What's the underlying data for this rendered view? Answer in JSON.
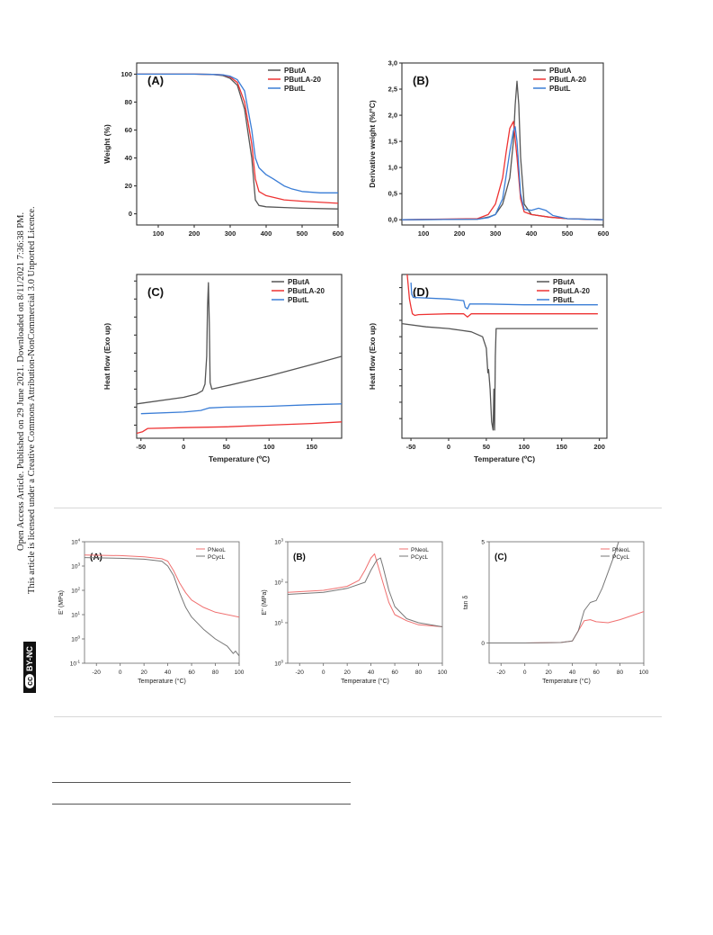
{
  "sidebar": {
    "line1": "Open Access Article. Published on 29 June 2021. Downloaded on 8/11/2021 7:36:38 PM.",
    "line2": "This article is licensed under a Creative Commons Attribution-NonCommercial 3.0 Unported Licence.",
    "badge_cc": "cc",
    "badge_text": "BY-NC"
  },
  "colors": {
    "series1": "#555555",
    "series2": "#ee3333",
    "series3": "#3a7dd6",
    "pink": "#f07070",
    "gray": "#777777"
  },
  "chart_data": [
    {
      "id": "A1",
      "type": "line",
      "panel_label": "(A)",
      "xlabel": "",
      "ylabel": "Weight (%)",
      "xlim": [
        40,
        600
      ],
      "ylim": [
        -8,
        108
      ],
      "xticks": [
        100,
        200,
        300,
        400,
        500,
        600
      ],
      "yticks": [
        0,
        20,
        40,
        60,
        80,
        100
      ],
      "ytick_labels": [
        "0",
        "20",
        "40",
        "60",
        "80",
        "100"
      ],
      "legend": "top-right",
      "series": [
        {
          "name": "PButA",
          "color": "#555555",
          "x": [
            40,
            200,
            250,
            280,
            300,
            320,
            340,
            360,
            370,
            380,
            400,
            450,
            500,
            600
          ],
          "y": [
            100,
            100,
            99.8,
            99,
            97,
            92,
            75,
            40,
            10,
            6,
            5,
            4.5,
            4,
            3.5
          ]
        },
        {
          "name": "PButLA-20",
          "color": "#ee3333",
          "x": [
            40,
            200,
            250,
            280,
            300,
            320,
            340,
            360,
            370,
            380,
            400,
            450,
            500,
            600
          ],
          "y": [
            100,
            100,
            99.8,
            99.5,
            98,
            94,
            80,
            50,
            25,
            16,
            13,
            10,
            9,
            7.5
          ]
        },
        {
          "name": "PButL",
          "color": "#3a7dd6",
          "x": [
            40,
            200,
            250,
            280,
            300,
            320,
            340,
            360,
            370,
            380,
            400,
            420,
            450,
            470,
            500,
            550,
            600
          ],
          "y": [
            100,
            100,
            99.8,
            99.5,
            98.5,
            96,
            88,
            60,
            40,
            33,
            28,
            25,
            20,
            18,
            16,
            15,
            15
          ]
        }
      ]
    },
    {
      "id": "B1",
      "type": "line",
      "panel_label": "(B)",
      "xlabel": "",
      "ylabel": "Derivative weight (%/°C)",
      "xlim": [
        40,
        600
      ],
      "ylim": [
        -0.1,
        3.0
      ],
      "xticks": [
        100,
        200,
        300,
        400,
        500,
        600
      ],
      "yticks": [
        0,
        0.5,
        1.0,
        1.5,
        2.0,
        2.5,
        3.0
      ],
      "ytick_labels": [
        "0,0",
        "0,5",
        "1,0",
        "1,5",
        "2,0",
        "2,5",
        "3,0"
      ],
      "legend": "top-right",
      "series": [
        {
          "name": "PButA",
          "color": "#555555",
          "x": [
            40,
            250,
            280,
            300,
            320,
            340,
            350,
            355,
            360,
            365,
            370,
            380,
            400,
            450,
            500,
            600
          ],
          "y": [
            0,
            0.01,
            0.05,
            0.1,
            0.3,
            0.8,
            1.5,
            2.2,
            2.65,
            2.2,
            1.2,
            0.3,
            0.1,
            0.05,
            0.02,
            0
          ]
        },
        {
          "name": "PButLA-20",
          "color": "#ee3333",
          "x": [
            40,
            250,
            280,
            300,
            320,
            330,
            340,
            350,
            360,
            370,
            380,
            400,
            450,
            500,
            600
          ],
          "y": [
            0,
            0.02,
            0.1,
            0.3,
            0.8,
            1.3,
            1.75,
            1.88,
            1.2,
            0.4,
            0.15,
            0.1,
            0.05,
            0.02,
            0
          ]
        },
        {
          "name": "PButL",
          "color": "#3a7dd6",
          "x": [
            40,
            250,
            280,
            300,
            320,
            340,
            350,
            355,
            360,
            370,
            380,
            400,
            420,
            440,
            460,
            500,
            600
          ],
          "y": [
            0,
            0.01,
            0.04,
            0.1,
            0.4,
            1.3,
            1.7,
            1.78,
            1.5,
            0.5,
            0.2,
            0.18,
            0.22,
            0.18,
            0.08,
            0.02,
            0
          ]
        }
      ]
    },
    {
      "id": "C1",
      "type": "line",
      "panel_label": "(C)",
      "xlabel": "Temperature (ºC)",
      "ylabel": "Heat flow (Exo up)",
      "xlim": [
        -55,
        185
      ],
      "ylim": [
        0,
        100
      ],
      "xticks": [
        -50,
        0,
        50,
        100,
        150
      ],
      "yticks": [
        8,
        19,
        30,
        41,
        52,
        63,
        74,
        85,
        96
      ],
      "ytick_labels": [],
      "legend": "top-right",
      "series": [
        {
          "name": "PButA",
          "color": "#555555",
          "x": [
            -55,
            0,
            15,
            22,
            25,
            27,
            28,
            29,
            30,
            31,
            33,
            50,
            100,
            150,
            185
          ],
          "y": [
            21,
            25,
            27,
            29,
            33,
            50,
            80,
            95,
            70,
            34,
            30,
            32,
            38,
            45,
            50
          ]
        },
        {
          "name": "PButLA-20",
          "color": "#ee3333",
          "x": [
            -55,
            -48,
            -42,
            0,
            50,
            100,
            150,
            185
          ],
          "y": [
            3,
            4,
            6,
            6.5,
            7,
            8,
            9,
            10
          ]
        },
        {
          "name": "PButL",
          "color": "#3a7dd6",
          "x": [
            -50,
            0,
            20,
            30,
            50,
            100,
            150,
            185
          ],
          "y": [
            15,
            16,
            17,
            18.5,
            19,
            19.5,
            20.5,
            21
          ]
        }
      ]
    },
    {
      "id": "D1",
      "type": "line",
      "panel_label": "(D)",
      "xlabel": "Temperature (ºC)",
      "ylabel": "Heat flow (Exo up)",
      "xlim": [
        -62,
        210
      ],
      "ylim": [
        0,
        100
      ],
      "xticks": [
        -50,
        0,
        50,
        100,
        150,
        200
      ],
      "yticks": [
        12,
        22,
        32,
        42,
        52,
        62,
        72,
        82,
        92
      ],
      "ytick_labels": [],
      "legend": "top-right",
      "series": [
        {
          "name": "PButA",
          "color": "#555555",
          "x": [
            -62,
            -30,
            0,
            30,
            45,
            50,
            52,
            53,
            55,
            57,
            59,
            60,
            61,
            62,
            63,
            70,
            100,
            150,
            198
          ],
          "y": [
            70,
            68,
            67,
            65,
            62,
            55,
            40,
            42,
            30,
            10,
            5,
            30,
            5,
            50,
            67,
            67,
            67,
            67,
            67
          ]
        },
        {
          "name": "PButLA-20",
          "color": "#ee3333",
          "x": [
            -55,
            -52,
            -50,
            -48,
            -45,
            -40,
            0,
            20,
            25,
            30,
            50,
            100,
            150,
            198
          ],
          "y": [
            100,
            85,
            80,
            76,
            75,
            75.5,
            76,
            76,
            74,
            76,
            76,
            76,
            76,
            76
          ]
        },
        {
          "name": "PButL",
          "color": "#3a7dd6",
          "x": [
            -50,
            -49,
            -47,
            0,
            20,
            22,
            25,
            28,
            30,
            50,
            100,
            150,
            198
          ],
          "y": [
            95,
            88,
            86,
            85,
            84,
            80,
            79,
            82,
            82,
            82,
            81.5,
            81.5,
            81.5
          ]
        }
      ]
    },
    {
      "id": "A2",
      "type": "line",
      "panel_label": "(A)",
      "xlabel": "Temperature (°C)",
      "ylabel": "E' (MPa)",
      "xlim": [
        -30,
        100
      ],
      "ylim": [
        -1,
        4
      ],
      "log_y": true,
      "xticks": [
        -20,
        0,
        20,
        40,
        60,
        80,
        100
      ],
      "yticks": [
        -1,
        0,
        1,
        2,
        3,
        4
      ],
      "ytick_labels": [
        "10-1",
        "100",
        "101",
        "102",
        "103",
        "104"
      ],
      "legend": "top-right",
      "series": [
        {
          "name": "PNeoL",
          "color": "#f07070",
          "x": [
            -30,
            0,
            20,
            35,
            40,
            45,
            50,
            55,
            60,
            70,
            80,
            100
          ],
          "y": [
            3.45,
            3.43,
            3.38,
            3.3,
            3.2,
            2.8,
            2.3,
            1.9,
            1.6,
            1.3,
            1.1,
            0.9
          ]
        },
        {
          "name": "PCycL",
          "color": "#777777",
          "x": [
            -30,
            0,
            20,
            35,
            40,
            45,
            50,
            55,
            60,
            70,
            80,
            90,
            95,
            97,
            100
          ],
          "y": [
            3.35,
            3.32,
            3.28,
            3.2,
            3.0,
            2.6,
            1.9,
            1.3,
            0.9,
            0.4,
            0.0,
            -0.3,
            -0.6,
            -0.5,
            -0.7
          ]
        }
      ]
    },
    {
      "id": "B2",
      "type": "line",
      "panel_label": "(B)",
      "xlabel": "Temperature (°C)",
      "ylabel": "E'' (MPa)",
      "xlim": [
        -30,
        100
      ],
      "ylim": [
        0,
        3
      ],
      "log_y": true,
      "xticks": [
        -20,
        0,
        20,
        40,
        60,
        80,
        100
      ],
      "yticks": [
        0,
        1,
        2,
        3
      ],
      "ytick_labels": [
        "100",
        "101",
        "102",
        "103"
      ],
      "legend": "top-right",
      "series": [
        {
          "name": "PNeoL",
          "color": "#f07070",
          "x": [
            -30,
            0,
            20,
            30,
            35,
            40,
            43,
            45,
            50,
            55,
            60,
            70,
            80,
            100
          ],
          "y": [
            1.75,
            1.8,
            1.9,
            2.05,
            2.3,
            2.6,
            2.7,
            2.5,
            2.0,
            1.5,
            1.2,
            1.05,
            0.95,
            0.9
          ]
        },
        {
          "name": "PCycL",
          "color": "#777777",
          "x": [
            -30,
            0,
            20,
            35,
            40,
            45,
            48,
            50,
            55,
            60,
            70,
            80,
            100
          ],
          "y": [
            1.7,
            1.75,
            1.85,
            2.0,
            2.3,
            2.55,
            2.6,
            2.4,
            1.8,
            1.4,
            1.1,
            1.0,
            0.9
          ]
        }
      ]
    },
    {
      "id": "C2",
      "type": "line",
      "panel_label": "(C)",
      "xlabel": "Temperature (°C)",
      "ylabel": "tan δ",
      "xlim": [
        -30,
        100
      ],
      "ylim": [
        -1,
        5
      ],
      "xticks": [
        -20,
        0,
        20,
        40,
        60,
        80,
        100
      ],
      "yticks": [
        0,
        5
      ],
      "ytick_labels": [
        "0",
        "5"
      ],
      "legend": "top-right",
      "series": [
        {
          "name": "PNeoL",
          "color": "#f07070",
          "x": [
            -30,
            0,
            30,
            40,
            45,
            50,
            55,
            60,
            70,
            80,
            90,
            100
          ],
          "y": [
            0,
            0,
            0.02,
            0.1,
            0.6,
            1.1,
            1.15,
            1.05,
            1.0,
            1.15,
            1.35,
            1.55
          ]
        },
        {
          "name": "PCycL",
          "color": "#777777",
          "x": [
            -30,
            0,
            30,
            40,
            45,
            50,
            55,
            60,
            65,
            70,
            75,
            80
          ],
          "y": [
            0,
            0,
            0.02,
            0.1,
            0.6,
            1.6,
            2.0,
            2.1,
            2.7,
            3.5,
            4.3,
            5.2
          ]
        }
      ]
    }
  ]
}
